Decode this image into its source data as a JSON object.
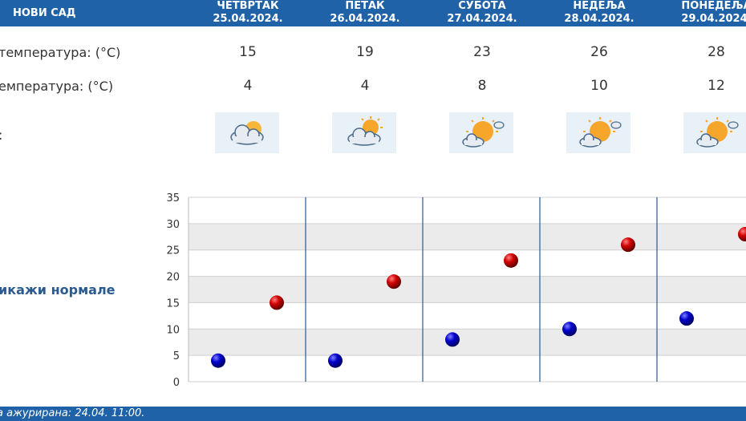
{
  "city": "НОВИ САД",
  "labels": {
    "max": "температура: (°C)",
    "min": "емпература: (°C)",
    "icon": ":",
    "normals": "икажи нормале"
  },
  "days": [
    {
      "name": "ЧЕТВРТАК",
      "date": "25.04.2024.",
      "max": "15",
      "min": "4",
      "icon": "partly-cloudy-icon"
    },
    {
      "name": "ПЕТАК",
      "date": "26.04.2024.",
      "max": "19",
      "min": "4",
      "icon": "partly-cloudy-icon"
    },
    {
      "name": "СУБОТА",
      "date": "27.04.2024.",
      "max": "23",
      "min": "8",
      "icon": "mostly-sunny-icon"
    },
    {
      "name": "НЕДЕЉА",
      "date": "28.04.2024.",
      "max": "26",
      "min": "10",
      "icon": "mostly-sunny-icon"
    },
    {
      "name": "ПОНЕДЕЉА",
      "date": "29.04.2024.",
      "max": "28",
      "min": "12",
      "icon": "mostly-sunny-icon"
    }
  ],
  "footer": "а ажурирана:  24.04.  11:00.",
  "chart_data": {
    "type": "scatter",
    "title": "",
    "ylim": [
      0,
      35
    ],
    "yticks": [
      0,
      5,
      10,
      15,
      20,
      25,
      30,
      35
    ],
    "grid": true,
    "series": [
      {
        "values": [
          15,
          19,
          23,
          26,
          28
        ],
        "color": "#cc0000"
      },
      {
        "values": [
          4,
          4,
          8,
          10,
          12
        ],
        "color": "#0000cc"
      }
    ]
  }
}
